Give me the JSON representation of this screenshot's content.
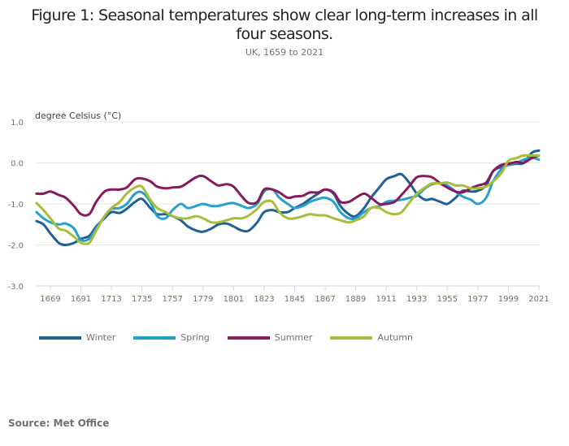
{
  "header": {
    "title": "Figure 1: Seasonal temperatures show clear long-term increases in all four seasons.",
    "subtitle": "UK, 1659 to 2021"
  },
  "footer": {
    "source": "Source: Met Office"
  },
  "chart_data": {
    "type": "line",
    "title": "Figure 1: Seasonal temperatures show clear long-term increases in all four seasons.",
    "subtitle": "UK, 1659 to 2021",
    "xlabel": "",
    "ylabel": "degree Celsius (°C)",
    "ylim": [
      -3.0,
      1.0
    ],
    "xlim": [
      1659,
      2021
    ],
    "yticks": [
      "1.0",
      "0.0",
      "-1.0",
      "-2.0",
      "-3.0"
    ],
    "ytick_values": [
      1.0,
      0.0,
      -1.0,
      -2.0,
      -3.0
    ],
    "xticks": [
      "1669",
      "1691",
      "1713",
      "1735",
      "1757",
      "1779",
      "1801",
      "1823",
      "1845",
      "1867",
      "1889",
      "1911",
      "1933",
      "1955",
      "1977",
      "1999",
      "2021"
    ],
    "grid": true,
    "legend_position": "bottom-left",
    "x": [
      1659,
      1664,
      1669,
      1675,
      1680,
      1686,
      1691,
      1697,
      1702,
      1708,
      1713,
      1719,
      1724,
      1730,
      1735,
      1741,
      1746,
      1752,
      1757,
      1763,
      1768,
      1774,
      1779,
      1785,
      1790,
      1796,
      1801,
      1807,
      1812,
      1818,
      1823,
      1829,
      1834,
      1840,
      1845,
      1851,
      1856,
      1862,
      1867,
      1873,
      1878,
      1884,
      1889,
      1895,
      1900,
      1906,
      1911,
      1917,
      1922,
      1928,
      1933,
      1939,
      1944,
      1950,
      1955,
      1961,
      1966,
      1972,
      1977,
      1983,
      1988,
      1994,
      1999,
      2005,
      2010,
      2016,
      2021
    ],
    "series": [
      {
        "name": "Winter",
        "color": "#206095",
        "values": [
          -1.42,
          -1.5,
          -1.72,
          -1.95,
          -2.0,
          -1.95,
          -1.85,
          -1.78,
          -1.55,
          -1.35,
          -1.2,
          -1.22,
          -1.12,
          -0.95,
          -0.88,
          -1.1,
          -1.25,
          -1.25,
          -1.3,
          -1.4,
          -1.55,
          -1.65,
          -1.68,
          -1.6,
          -1.5,
          -1.48,
          -1.55,
          -1.65,
          -1.65,
          -1.45,
          -1.2,
          -1.15,
          -1.2,
          -1.2,
          -1.1,
          -1.0,
          -0.88,
          -0.75,
          -0.65,
          -0.75,
          -1.05,
          -1.25,
          -1.3,
          -1.1,
          -0.85,
          -0.6,
          -0.4,
          -0.32,
          -0.28,
          -0.5,
          -0.75,
          -0.9,
          -0.88,
          -0.95,
          -1.0,
          -0.85,
          -0.68,
          -0.7,
          -0.68,
          -0.55,
          -0.2,
          -0.1,
          -0.05,
          -0.02,
          0.0,
          0.25,
          0.3
        ]
      },
      {
        "name": "Spring",
        "color": "#27A0CC",
        "values": [
          -1.2,
          -1.35,
          -1.45,
          -1.5,
          -1.48,
          -1.6,
          -1.88,
          -1.85,
          -1.6,
          -1.3,
          -1.12,
          -1.1,
          -1.0,
          -0.75,
          -0.72,
          -0.95,
          -1.3,
          -1.35,
          -1.15,
          -1.0,
          -1.1,
          -1.05,
          -1.0,
          -1.05,
          -1.05,
          -1.0,
          -0.98,
          -1.05,
          -1.1,
          -1.0,
          -0.7,
          -0.65,
          -0.85,
          -1.0,
          -1.1,
          -1.05,
          -0.95,
          -0.88,
          -0.85,
          -0.95,
          -1.2,
          -1.35,
          -1.35,
          -1.2,
          -1.1,
          -1.05,
          -0.95,
          -0.92,
          -0.9,
          -0.85,
          -0.8,
          -0.62,
          -0.52,
          -0.5,
          -0.55,
          -0.7,
          -0.82,
          -0.9,
          -1.0,
          -0.85,
          -0.45,
          -0.15,
          -0.05,
          0.0,
          0.08,
          0.12,
          0.08
        ]
      },
      {
        "name": "Summer",
        "color": "#871A5B",
        "values": [
          -0.75,
          -0.75,
          -0.7,
          -0.78,
          -0.85,
          -1.05,
          -1.25,
          -1.25,
          -0.95,
          -0.7,
          -0.65,
          -0.65,
          -0.6,
          -0.4,
          -0.38,
          -0.45,
          -0.58,
          -0.62,
          -0.6,
          -0.58,
          -0.48,
          -0.35,
          -0.32,
          -0.45,
          -0.55,
          -0.52,
          -0.58,
          -0.82,
          -0.98,
          -0.95,
          -0.65,
          -0.65,
          -0.72,
          -0.85,
          -0.82,
          -0.8,
          -0.72,
          -0.72,
          -0.65,
          -0.72,
          -0.95,
          -0.95,
          -0.85,
          -0.75,
          -0.85,
          -1.0,
          -1.0,
          -0.95,
          -0.78,
          -0.55,
          -0.35,
          -0.32,
          -0.35,
          -0.5,
          -0.6,
          -0.7,
          -0.72,
          -0.62,
          -0.55,
          -0.48,
          -0.2,
          -0.05,
          -0.02,
          0.02,
          0.0,
          0.12,
          0.18
        ]
      },
      {
        "name": "Autumn",
        "color": "#A8BD3A",
        "values": [
          -0.98,
          -1.15,
          -1.35,
          -1.6,
          -1.65,
          -1.8,
          -1.95,
          -1.95,
          -1.65,
          -1.3,
          -1.1,
          -0.95,
          -0.75,
          -0.6,
          -0.58,
          -0.9,
          -1.1,
          -1.2,
          -1.3,
          -1.35,
          -1.35,
          -1.3,
          -1.35,
          -1.45,
          -1.45,
          -1.4,
          -1.35,
          -1.35,
          -1.28,
          -1.12,
          -0.95,
          -0.95,
          -1.2,
          -1.35,
          -1.35,
          -1.3,
          -1.25,
          -1.28,
          -1.28,
          -1.35,
          -1.4,
          -1.45,
          -1.4,
          -1.3,
          -1.1,
          -1.1,
          -1.2,
          -1.25,
          -1.2,
          -0.95,
          -0.75,
          -0.6,
          -0.5,
          -0.5,
          -0.48,
          -0.55,
          -0.55,
          -0.62,
          -0.62,
          -0.58,
          -0.45,
          -0.25,
          0.05,
          0.12,
          0.18,
          0.18,
          0.18
        ]
      }
    ]
  }
}
